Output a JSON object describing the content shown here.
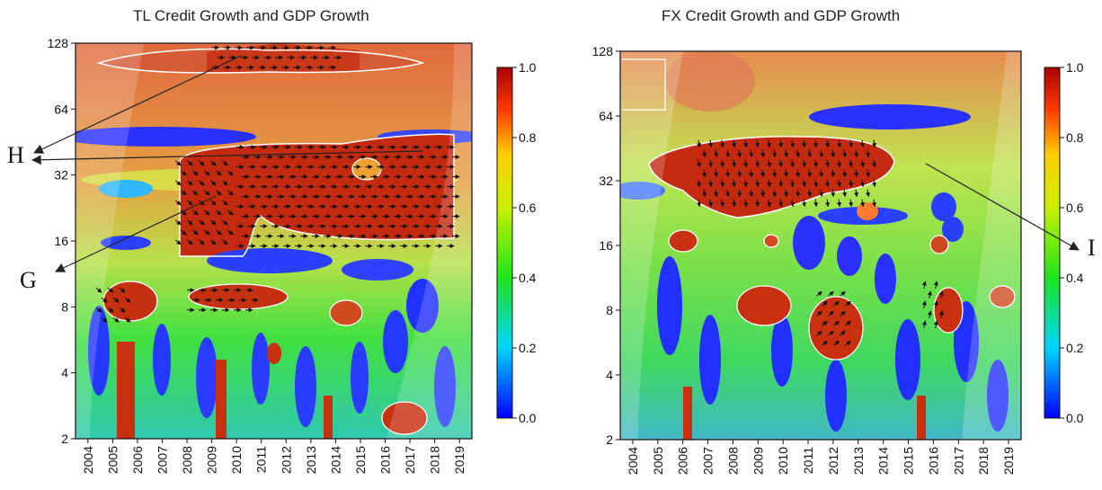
{
  "chart_data": [
    {
      "type": "heatmap",
      "title": "TL Credit Growth and GDP Growth",
      "xlabel": "",
      "ylabel": "",
      "x_ticks": [
        "2004",
        "2005",
        "2006",
        "2007",
        "2008",
        "2009",
        "2010",
        "2011",
        "2012",
        "2013",
        "2014",
        "2015",
        "2016",
        "2017",
        "2018",
        "2019"
      ],
      "y_ticks": [
        2,
        4,
        8,
        16,
        32,
        64,
        128
      ],
      "y_scale": "log2",
      "xlim": [
        2004,
        2020
      ],
      "ylim": [
        2,
        128
      ],
      "colorbar": {
        "ticks": [
          "0.0",
          "0.2",
          "0.4",
          "0.6",
          "0.8",
          "1.0"
        ],
        "range": [
          0.0,
          1.0
        ],
        "colors": [
          "#0000ff",
          "#00ffff",
          "#00ff00",
          "#ffff00",
          "#ff0000",
          "#a00000"
        ]
      },
      "high_coherence_regions": [
        {
          "label": "G",
          "x_range": [
            2008.0,
            2010.5
          ],
          "period_range": [
            14,
            38
          ],
          "phase": "down-right"
        },
        {
          "label": "H",
          "x_range": [
            2010.5,
            2019.8
          ],
          "period_range": [
            14,
            45
          ],
          "phase": "right"
        },
        {
          "label": "H",
          "x_range": [
            2009.5,
            2015.0
          ],
          "period_range": [
            95,
            128
          ],
          "phase": "right"
        },
        {
          "label": "",
          "x_range": [
            2004.8,
            2006.5
          ],
          "period_range": [
            6.5,
            10
          ],
          "phase": "down-right"
        },
        {
          "label": "",
          "x_range": [
            2008.5,
            2011.5
          ],
          "period_range": [
            7,
            10
          ],
          "phase": "right"
        }
      ],
      "annotations": [
        "H",
        "G"
      ]
    },
    {
      "type": "heatmap",
      "title": "FX Credit Growth and GDP Growth",
      "xlabel": "",
      "ylabel": "",
      "x_ticks": [
        "2004",
        "2005",
        "2006",
        "2007",
        "2008",
        "2009",
        "2010",
        "2011",
        "2012",
        "2013",
        "2014",
        "2015",
        "2016",
        "2017",
        "2018",
        "2019"
      ],
      "y_ticks": [
        2,
        4,
        8,
        16,
        32,
        64,
        128
      ],
      "y_scale": "log2",
      "xlim": [
        2004,
        2020
      ],
      "ylim": [
        2,
        128
      ],
      "colorbar": {
        "ticks": [
          "0.0",
          "0.2",
          "0.4",
          "0.6",
          "0.8",
          "1.0"
        ],
        "range": [
          0.0,
          1.0
        ],
        "colors": [
          "#0000ff",
          "#00ffff",
          "#00ff00",
          "#ffff00",
          "#ff0000",
          "#a00000"
        ]
      },
      "high_coherence_regions": [
        {
          "label": "I",
          "x_range": [
            2007.0,
            2014.5
          ],
          "period_range": [
            24,
            50
          ],
          "phase": "down"
        },
        {
          "label": "",
          "x_range": [
            2011.8,
            2013.5
          ],
          "period_range": [
            5,
            10
          ],
          "phase": "up-right"
        },
        {
          "label": "",
          "x_range": [
            2016.0,
            2017.2
          ],
          "period_range": [
            6.5,
            11
          ],
          "phase": "up"
        }
      ],
      "annotations": [
        "I"
      ]
    }
  ]
}
